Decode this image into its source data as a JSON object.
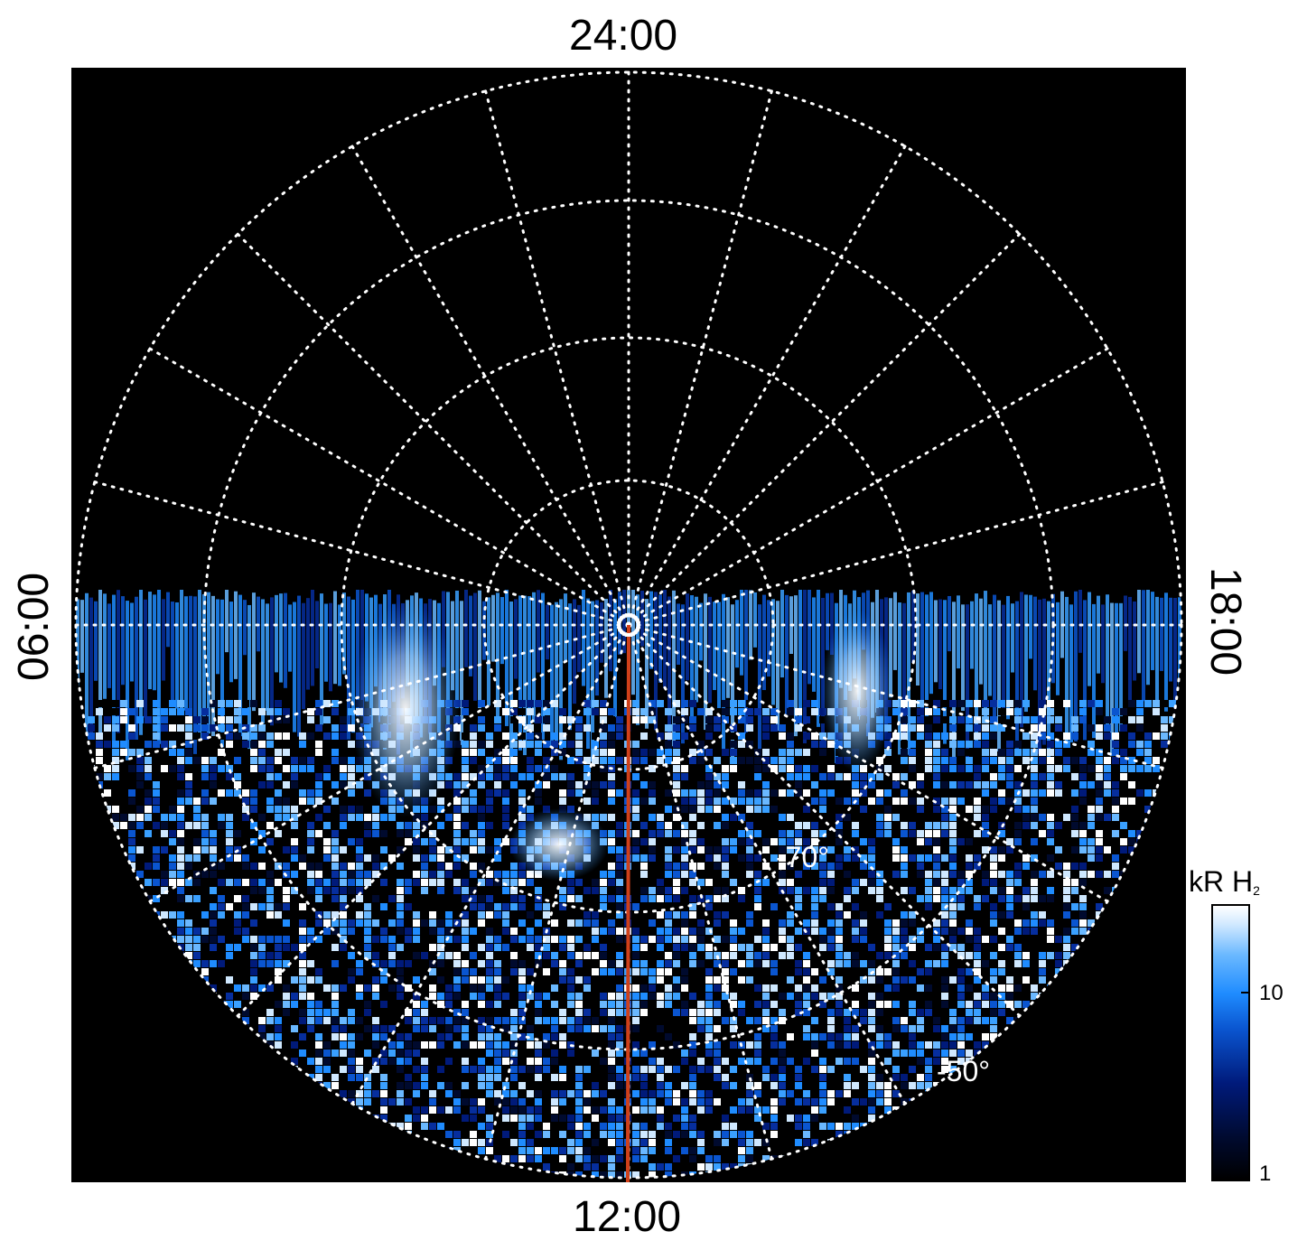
{
  "labels": {
    "top": "24:00",
    "bottom": "12:00",
    "left": "06:00",
    "right": "18:00"
  },
  "grid_labels": {
    "lat_70": "-70°",
    "lat_50": "-50°"
  },
  "colorbar": {
    "title": "kR H",
    "title_sub": "2",
    "tick_10": "10",
    "tick_1": "1"
  },
  "colors": {
    "background": "#000000",
    "grid": "#ffffff",
    "meridian_line": "#d0401a"
  }
}
